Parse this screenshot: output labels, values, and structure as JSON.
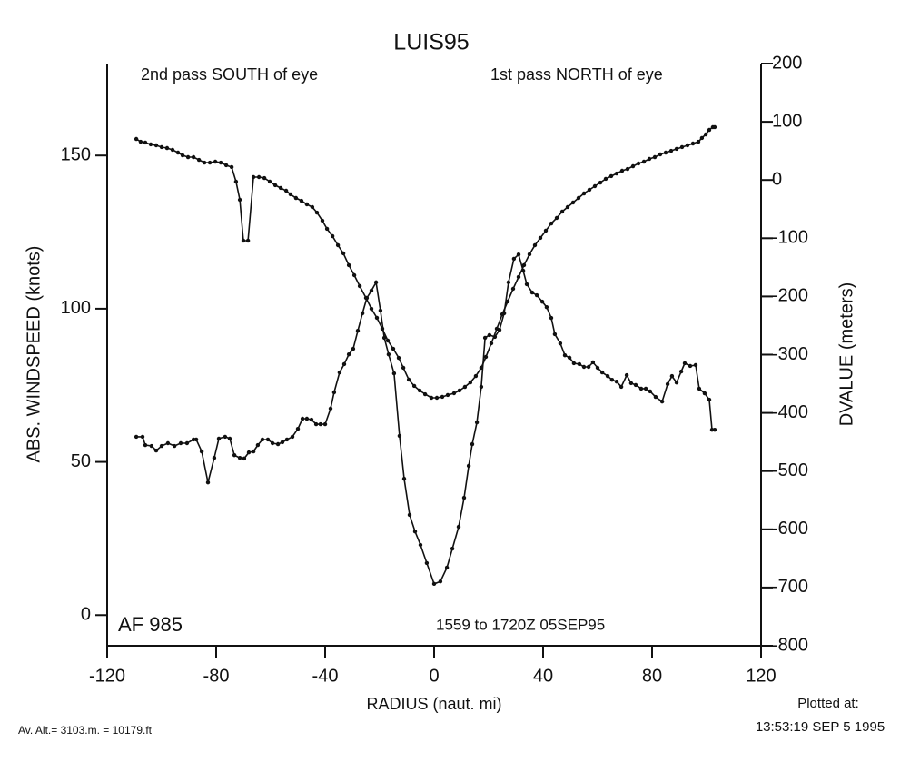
{
  "chart_data": {
    "type": "line",
    "title": "LUIS95",
    "annotations": [
      "2nd pass SOUTH of eye",
      "1st pass NORTH of eye",
      "AF 985",
      "1559 to 1720Z 05SEP95"
    ],
    "xlabel": "RADIUS (naut. mi)",
    "ylabel": "ABS. WINDSPEED (knots)",
    "y2label": "DVALUE (meters)",
    "footer_left": "Av. Alt.= 3103.m. = 10179.ft",
    "footer_right": [
      "Plotted at:",
      "13:53:19 SEP  5 1995"
    ],
    "xlim": [
      -120,
      120
    ],
    "xticks": [
      -120,
      -80,
      -40,
      0,
      40,
      80,
      120
    ],
    "ylim": [
      -10,
      180
    ],
    "yticks": [
      0,
      50,
      100,
      150
    ],
    "y2lim": [
      -800,
      200
    ],
    "y2ticks": [
      -800,
      -700,
      -600,
      -500,
      -400,
      -300,
      -200,
      -100,
      0,
      100,
      200
    ],
    "series": [
      {
        "color": "#111111",
        "axis": "y",
        "x": [
          -109.3,
          -107,
          -106,
          -103.7,
          -102,
          -100,
          -97.7,
          -95.3,
          -93,
          -90.7,
          -88.3,
          -87.3,
          -85.3,
          -83,
          -80.7,
          -79,
          -76.7,
          -75,
          -73.3,
          -71.3,
          -69.7,
          -68,
          -66.3,
          -64.7,
          -63,
          -61,
          -59.3,
          -57.3,
          -55.7,
          -54,
          -52,
          -50,
          -48.3,
          -46.7,
          -45,
          -43.3,
          -41.7,
          -40,
          -38,
          -36.7,
          -34.7,
          -33,
          -31.3,
          -29.7,
          -28,
          -26.3,
          -24.7,
          -23,
          -21.3,
          -19.7,
          -18.3,
          -16.7,
          -14.7,
          -12.7,
          -11,
          -9,
          -7,
          -5,
          -2.7,
          0,
          2.3,
          4.7,
          6.7,
          9,
          11,
          12.7,
          14,
          15.7,
          17.3,
          18.7,
          20.3,
          22.3,
          24,
          25.7,
          27.3,
          29.3,
          31,
          32.7,
          34,
          36,
          37.7,
          39.7,
          41.3,
          43,
          44.3,
          46.3,
          48,
          49.7,
          51.3,
          53.3,
          55,
          56.7,
          58.3,
          60,
          61.7,
          63.7,
          65.3,
          67,
          68.7,
          70.7,
          72.3,
          74,
          76,
          77.7,
          79.3,
          81.3,
          83.7,
          85.7,
          87.3,
          89,
          90.7,
          92,
          94,
          96,
          97.3,
          99.3,
          101,
          102,
          103
        ],
        "values": [
          58.2,
          58.2,
          55.5,
          55.2,
          53.7,
          55.2,
          56.1,
          55.2,
          56.1,
          56.1,
          57.3,
          57.3,
          53.4,
          43.3,
          51.3,
          57.6,
          58.2,
          57.6,
          52.2,
          51.3,
          51.1,
          53.1,
          53.4,
          55.5,
          57.3,
          57.3,
          56.1,
          55.8,
          56.4,
          57.3,
          58.2,
          60.8,
          64.1,
          64.1,
          63.8,
          62.3,
          62.3,
          62.3,
          67.4,
          72.7,
          79.2,
          81.9,
          85.1,
          86.9,
          92.8,
          98.5,
          103.5,
          105.9,
          108.6,
          99.4,
          90.5,
          85.1,
          78.9,
          58.5,
          44.5,
          32.7,
          27.3,
          22.9,
          17,
          10.2,
          11,
          15.5,
          21.7,
          28.8,
          38.3,
          48.7,
          55.8,
          62.9,
          74.5,
          90.5,
          91.4,
          90.8,
          93.1,
          98.5,
          108.6,
          116.3,
          117.7,
          112.4,
          108,
          105.3,
          104.4,
          102.3,
          100.5,
          97,
          91.7,
          88.7,
          84.8,
          84,
          82.2,
          81.9,
          81,
          81,
          82.5,
          80.7,
          79.2,
          78,
          76.8,
          76.2,
          74.5,
          78.3,
          75.7,
          75.1,
          73.9,
          73.9,
          73,
          71.2,
          69.7,
          75.4,
          78,
          75.9,
          79.5,
          82.2,
          81.3,
          81.6,
          73.9,
          72.4,
          70.3,
          60.5,
          60.5
        ]
      },
      {
        "color": "#111111",
        "axis": "y2",
        "x": [
          -109.3,
          -107.7,
          -106,
          -104,
          -102,
          -100,
          -98,
          -96,
          -94,
          -92.3,
          -90.3,
          -88.3,
          -86.3,
          -84.3,
          -82.3,
          -80.3,
          -78.3,
          -76.3,
          -74.3,
          -72.7,
          -71.3,
          -70,
          -68.3,
          -66.3,
          -64.3,
          -62.3,
          -60.3,
          -58.3,
          -56.3,
          -54.3,
          -52.7,
          -50.7,
          -48.7,
          -46.7,
          -44.7,
          -43,
          -41,
          -39.3,
          -37.3,
          -35.3,
          -33.3,
          -31.3,
          -29.3,
          -27.3,
          -25,
          -23,
          -21,
          -19,
          -17,
          -15,
          -13,
          -11.3,
          -9.3,
          -7.3,
          -5.3,
          -3.3,
          -1,
          1,
          3,
          5,
          7.3,
          9.3,
          11.3,
          13.3,
          15.3,
          17.3,
          19,
          21,
          23,
          25,
          27,
          29,
          31,
          33,
          35,
          37,
          39,
          41,
          43,
          45,
          47,
          49,
          51,
          53,
          55,
          57,
          59,
          61,
          63,
          65,
          67,
          69,
          71,
          73,
          75,
          77,
          79,
          81,
          83,
          85,
          87,
          89,
          91,
          93,
          95,
          97,
          98.3,
          99.7,
          101,
          102.3,
          103
        ],
        "values": [
          70.5,
          65.8,
          64.3,
          61.2,
          59.6,
          56.5,
          54.9,
          51.8,
          47.1,
          42.4,
          39.3,
          39.3,
          34.6,
          29.9,
          29.9,
          31.5,
          29.9,
          25.3,
          22.2,
          -2.8,
          -34,
          -104.2,
          -104.2,
          5,
          5,
          3.4,
          -2.8,
          -9,
          -13.7,
          -18.4,
          -24.6,
          -30.9,
          -35.6,
          -41.8,
          -46.5,
          -55.9,
          -69.9,
          -83.9,
          -96.4,
          -112,
          -126,
          -146.3,
          -163.5,
          -182.2,
          -202.5,
          -221.2,
          -236.8,
          -255.5,
          -275.8,
          -289.9,
          -305.5,
          -322.6,
          -342.9,
          -353.8,
          -361.6,
          -367.9,
          -374.1,
          -374.1,
          -372.5,
          -369.4,
          -366.3,
          -361.6,
          -355.4,
          -347.6,
          -336.7,
          -322.6,
          -303.9,
          -280.5,
          -255.5,
          -230.6,
          -208.7,
          -186.9,
          -166.6,
          -146.3,
          -127.6,
          -112,
          -99.5,
          -87,
          -74.6,
          -65.2,
          -54.3,
          -46.5,
          -38.7,
          -30.9,
          -23.1,
          -16.8,
          -10.6,
          -4.4,
          1.9,
          6.6,
          11.2,
          15.9,
          19,
          23.7,
          28.4,
          31.5,
          36.2,
          39.3,
          44,
          47.1,
          50.2,
          53.4,
          56.5,
          59.6,
          62.7,
          65.8,
          72.1,
          78.3,
          86.1,
          90.8,
          90.8
        ]
      }
    ]
  }
}
